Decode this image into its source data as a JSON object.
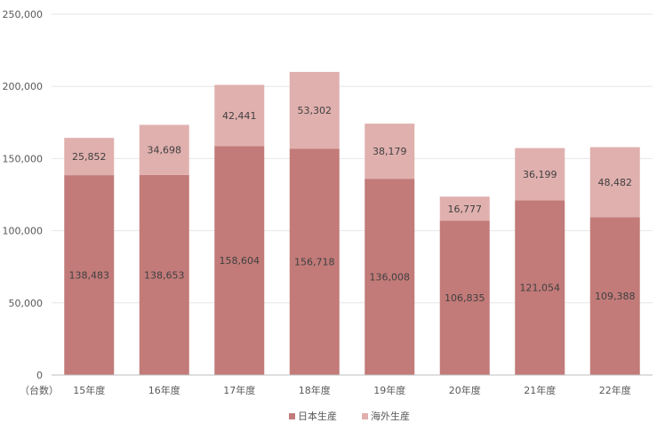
{
  "chart_data": {
    "type": "bar",
    "stacked": true,
    "categories": [
      "15年度",
      "16年度",
      "17年度",
      "18年度",
      "19年度",
      "20年度",
      "21年度",
      "22年度"
    ],
    "series": [
      {
        "name": "日本生産",
        "values": [
          138483,
          138653,
          158604,
          156718,
          136008,
          106835,
          121054,
          109388
        ],
        "value_labels": [
          "138,483",
          "138,653",
          "158,604",
          "156,718",
          "136,008",
          "106,835",
          "121,054",
          "109,388"
        ],
        "color": "#c27b79"
      },
      {
        "name": "海外生産",
        "values": [
          25852,
          34698,
          42441,
          53302,
          38179,
          16777,
          36199,
          48482
        ],
        "value_labels": [
          "25,852",
          "34,698",
          "42,441",
          "53,302",
          "38,179",
          "16,777",
          "36,199",
          "48,482"
        ],
        "color": "#e0b0ae"
      }
    ],
    "y_ticks": [
      0,
      50000,
      100000,
      150000,
      200000,
      250000
    ],
    "y_tick_labels": [
      "0",
      "50,000",
      "100,000",
      "150,000",
      "200,000",
      "250,000"
    ],
    "ylim": [
      0,
      250000
    ],
    "unit_label": "（台数）",
    "grid": true,
    "gridline_color": "#e6e6e6",
    "axis_color": "#bfbfbf",
    "legend_position": "bottom"
  }
}
